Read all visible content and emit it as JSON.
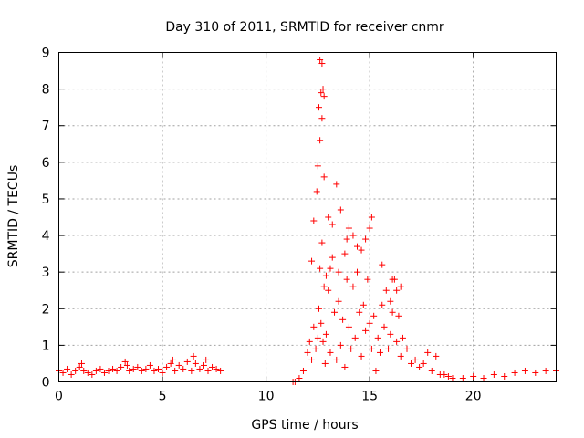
{
  "chart_data": {
    "type": "scatter",
    "title": "Day 310 of 2011, SRMTID for receiver cnmr",
    "xlabel": "GPS time / hours",
    "ylabel": "SRMTID / TECUs",
    "xlim": [
      0,
      24
    ],
    "ylim": [
      0,
      9
    ],
    "xticks": [
      0,
      5,
      10,
      15,
      20
    ],
    "yticks": [
      0,
      1,
      2,
      3,
      4,
      5,
      6,
      7,
      8,
      9
    ],
    "grid": true,
    "marker": "+",
    "marker_color": "#ff0000",
    "series": [
      {
        "name": "SRMTID",
        "x": [
          0.0,
          0.2,
          0.4,
          0.6,
          0.8,
          1.0,
          1.1,
          1.2,
          1.4,
          1.6,
          1.8,
          2.0,
          2.2,
          2.4,
          2.6,
          2.8,
          3.0,
          3.2,
          3.3,
          3.4,
          3.6,
          3.8,
          4.0,
          4.2,
          4.4,
          4.6,
          4.8,
          5.0,
          5.2,
          5.4,
          5.5,
          5.6,
          5.8,
          6.0,
          6.2,
          6.4,
          6.5,
          6.6,
          6.8,
          7.0,
          7.1,
          7.2,
          7.4,
          7.6,
          7.8,
          11.3,
          11.4,
          11.6,
          11.8,
          12.0,
          12.1,
          12.2,
          12.3,
          12.4,
          12.5,
          12.55,
          12.6,
          12.65,
          12.7,
          12.75,
          12.8,
          12.85,
          12.9,
          13.0,
          13.1,
          13.2,
          13.3,
          13.4,
          13.5,
          13.6,
          13.7,
          13.8,
          13.9,
          14.0,
          14.1,
          14.2,
          14.3,
          14.4,
          14.5,
          14.6,
          14.7,
          14.8,
          14.9,
          15.0,
          15.1,
          15.2,
          15.3,
          15.4,
          15.5,
          15.6,
          15.7,
          15.8,
          15.9,
          16.0,
          16.1,
          16.2,
          16.3,
          16.4,
          16.5,
          16.6,
          16.8,
          17.0,
          17.2,
          17.4,
          17.6,
          17.8,
          18.0,
          18.2,
          18.4,
          18.6,
          18.8,
          19.0,
          19.5,
          20.0,
          20.5,
          21.0,
          21.5,
          22.0,
          22.5,
          23.0,
          23.5,
          24.0,
          12.6,
          12.7,
          12.75,
          12.8,
          12.65,
          12.55,
          12.7,
          12.6,
          12.5,
          12.45,
          12.8,
          13.4,
          13.6,
          13.2,
          13.0,
          14.0,
          14.2,
          13.9,
          15.1,
          15.0,
          14.8,
          16.1,
          16.3,
          16.0,
          13.8,
          14.4,
          12.2,
          12.3,
          13.5,
          15.6,
          16.5,
          14.6,
          13.1,
          12.9
        ],
        "y": [
          0.3,
          0.25,
          0.35,
          0.2,
          0.3,
          0.4,
          0.5,
          0.3,
          0.25,
          0.2,
          0.3,
          0.35,
          0.25,
          0.3,
          0.35,
          0.3,
          0.4,
          0.55,
          0.45,
          0.3,
          0.35,
          0.4,
          0.3,
          0.35,
          0.45,
          0.3,
          0.35,
          0.25,
          0.4,
          0.5,
          0.6,
          0.3,
          0.45,
          0.35,
          0.55,
          0.3,
          0.7,
          0.5,
          0.35,
          0.45,
          0.6,
          0.3,
          0.4,
          0.35,
          0.3,
          0.0,
          0.0,
          0.1,
          0.3,
          0.8,
          1.1,
          0.6,
          1.5,
          0.9,
          1.2,
          2.0,
          3.1,
          1.6,
          3.8,
          1.1,
          2.6,
          0.5,
          1.3,
          2.5,
          0.8,
          3.4,
          1.9,
          0.6,
          2.2,
          1.0,
          1.7,
          0.4,
          2.8,
          1.5,
          0.9,
          2.6,
          1.2,
          3.0,
          1.9,
          0.7,
          2.1,
          1.4,
          2.8,
          1.6,
          0.9,
          1.8,
          0.3,
          1.2,
          0.8,
          2.1,
          1.5,
          2.5,
          0.9,
          1.3,
          1.9,
          2.8,
          1.1,
          1.8,
          0.7,
          1.2,
          0.9,
          0.5,
          0.6,
          0.4,
          0.5,
          0.8,
          0.3,
          0.7,
          0.2,
          0.2,
          0.15,
          0.1,
          0.1,
          0.15,
          0.1,
          0.2,
          0.15,
          0.25,
          0.3,
          0.25,
          0.3,
          0.3,
          8.8,
          8.7,
          8.0,
          7.8,
          7.9,
          7.5,
          7.2,
          6.6,
          5.9,
          5.2,
          5.6,
          5.4,
          4.7,
          4.3,
          4.5,
          4.2,
          4.0,
          3.9,
          4.5,
          4.2,
          3.9,
          2.8,
          2.5,
          2.2,
          3.5,
          3.7,
          3.3,
          4.4,
          3.0,
          3.2,
          2.6,
          3.6,
          3.1,
          2.9
        ]
      }
    ]
  }
}
